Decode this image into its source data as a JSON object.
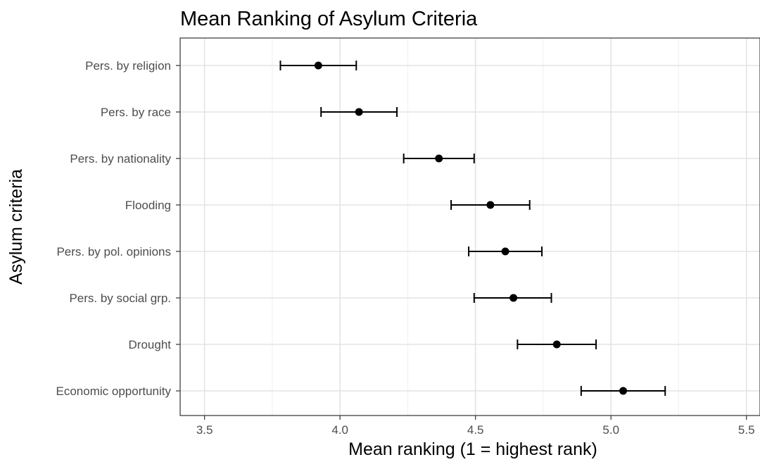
{
  "chart_data": {
    "type": "scatter",
    "title": "Mean Ranking of Asylum Criteria",
    "xlabel": "Mean ranking (1 = highest rank)",
    "ylabel": "Asylum criteria",
    "xlim": [
      3.41,
      5.55
    ],
    "x_ticks": [
      3.5,
      4.0,
      4.5,
      5.0,
      5.5
    ],
    "x_tick_labels": [
      "3.5",
      "4.0",
      "4.5",
      "5.0",
      "5.5"
    ],
    "grid": true,
    "theme": "bw",
    "point_color": "#000000",
    "error_bar_color": "#000000",
    "categories": [
      "Pers. by religion",
      "Pers. by race",
      "Pers. by nationality",
      "Flooding",
      "Pers. by pol. opinions",
      "Pers. by social grp.",
      "Drought",
      "Economic opportunity"
    ],
    "series": [
      {
        "mean": [
          3.92,
          4.07,
          4.365,
          4.555,
          4.61,
          4.64,
          4.8,
          5.045
        ],
        "lower": [
          3.78,
          3.93,
          4.235,
          4.41,
          4.475,
          4.495,
          4.655,
          4.89
        ],
        "upper": [
          4.06,
          4.21,
          4.495,
          4.7,
          4.745,
          4.78,
          4.945,
          5.2
        ]
      }
    ]
  }
}
